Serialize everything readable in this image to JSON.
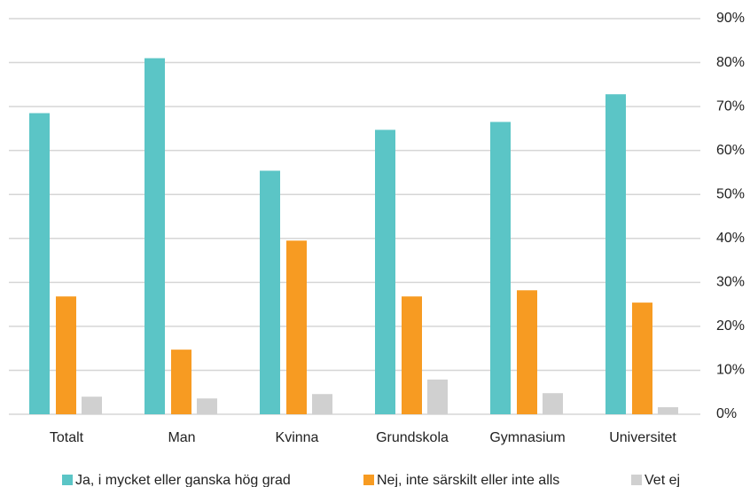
{
  "chart_data": {
    "type": "bar",
    "categories": [
      "Totalt",
      "Man",
      "Kvinna",
      "Grundskola",
      "Gymnasium",
      "Universitet"
    ],
    "series": [
      {
        "name": "Ja, i mycket eller ganska hög grad",
        "color": "#5bc5c6",
        "values": [
          68.5,
          81,
          55.4,
          64.7,
          66.5,
          72.8
        ]
      },
      {
        "name": "Nej, inte särskilt eller inte alls",
        "color": "#f79b22",
        "values": [
          26.8,
          14.7,
          39.5,
          26.8,
          28.2,
          25.4
        ]
      },
      {
        "name": "Vet ej",
        "color": "#d0d0d0",
        "values": [
          4.0,
          3.6,
          4.6,
          7.9,
          4.8,
          1.6
        ]
      }
    ],
    "ylim": [
      0,
      90
    ],
    "yticks": [
      {
        "value": 0,
        "label": "0%"
      },
      {
        "value": 10,
        "label": "10%"
      },
      {
        "value": 20,
        "label": "20%"
      },
      {
        "value": 30,
        "label": "30%"
      },
      {
        "value": 40,
        "label": "40%"
      },
      {
        "value": 50,
        "label": "50%"
      },
      {
        "value": 60,
        "label": "60%"
      },
      {
        "value": 70,
        "label": "70%"
      },
      {
        "value": 80,
        "label": "80%"
      },
      {
        "value": 90,
        "label": "90%"
      }
    ],
    "grid": true,
    "legend": "bottom"
  }
}
